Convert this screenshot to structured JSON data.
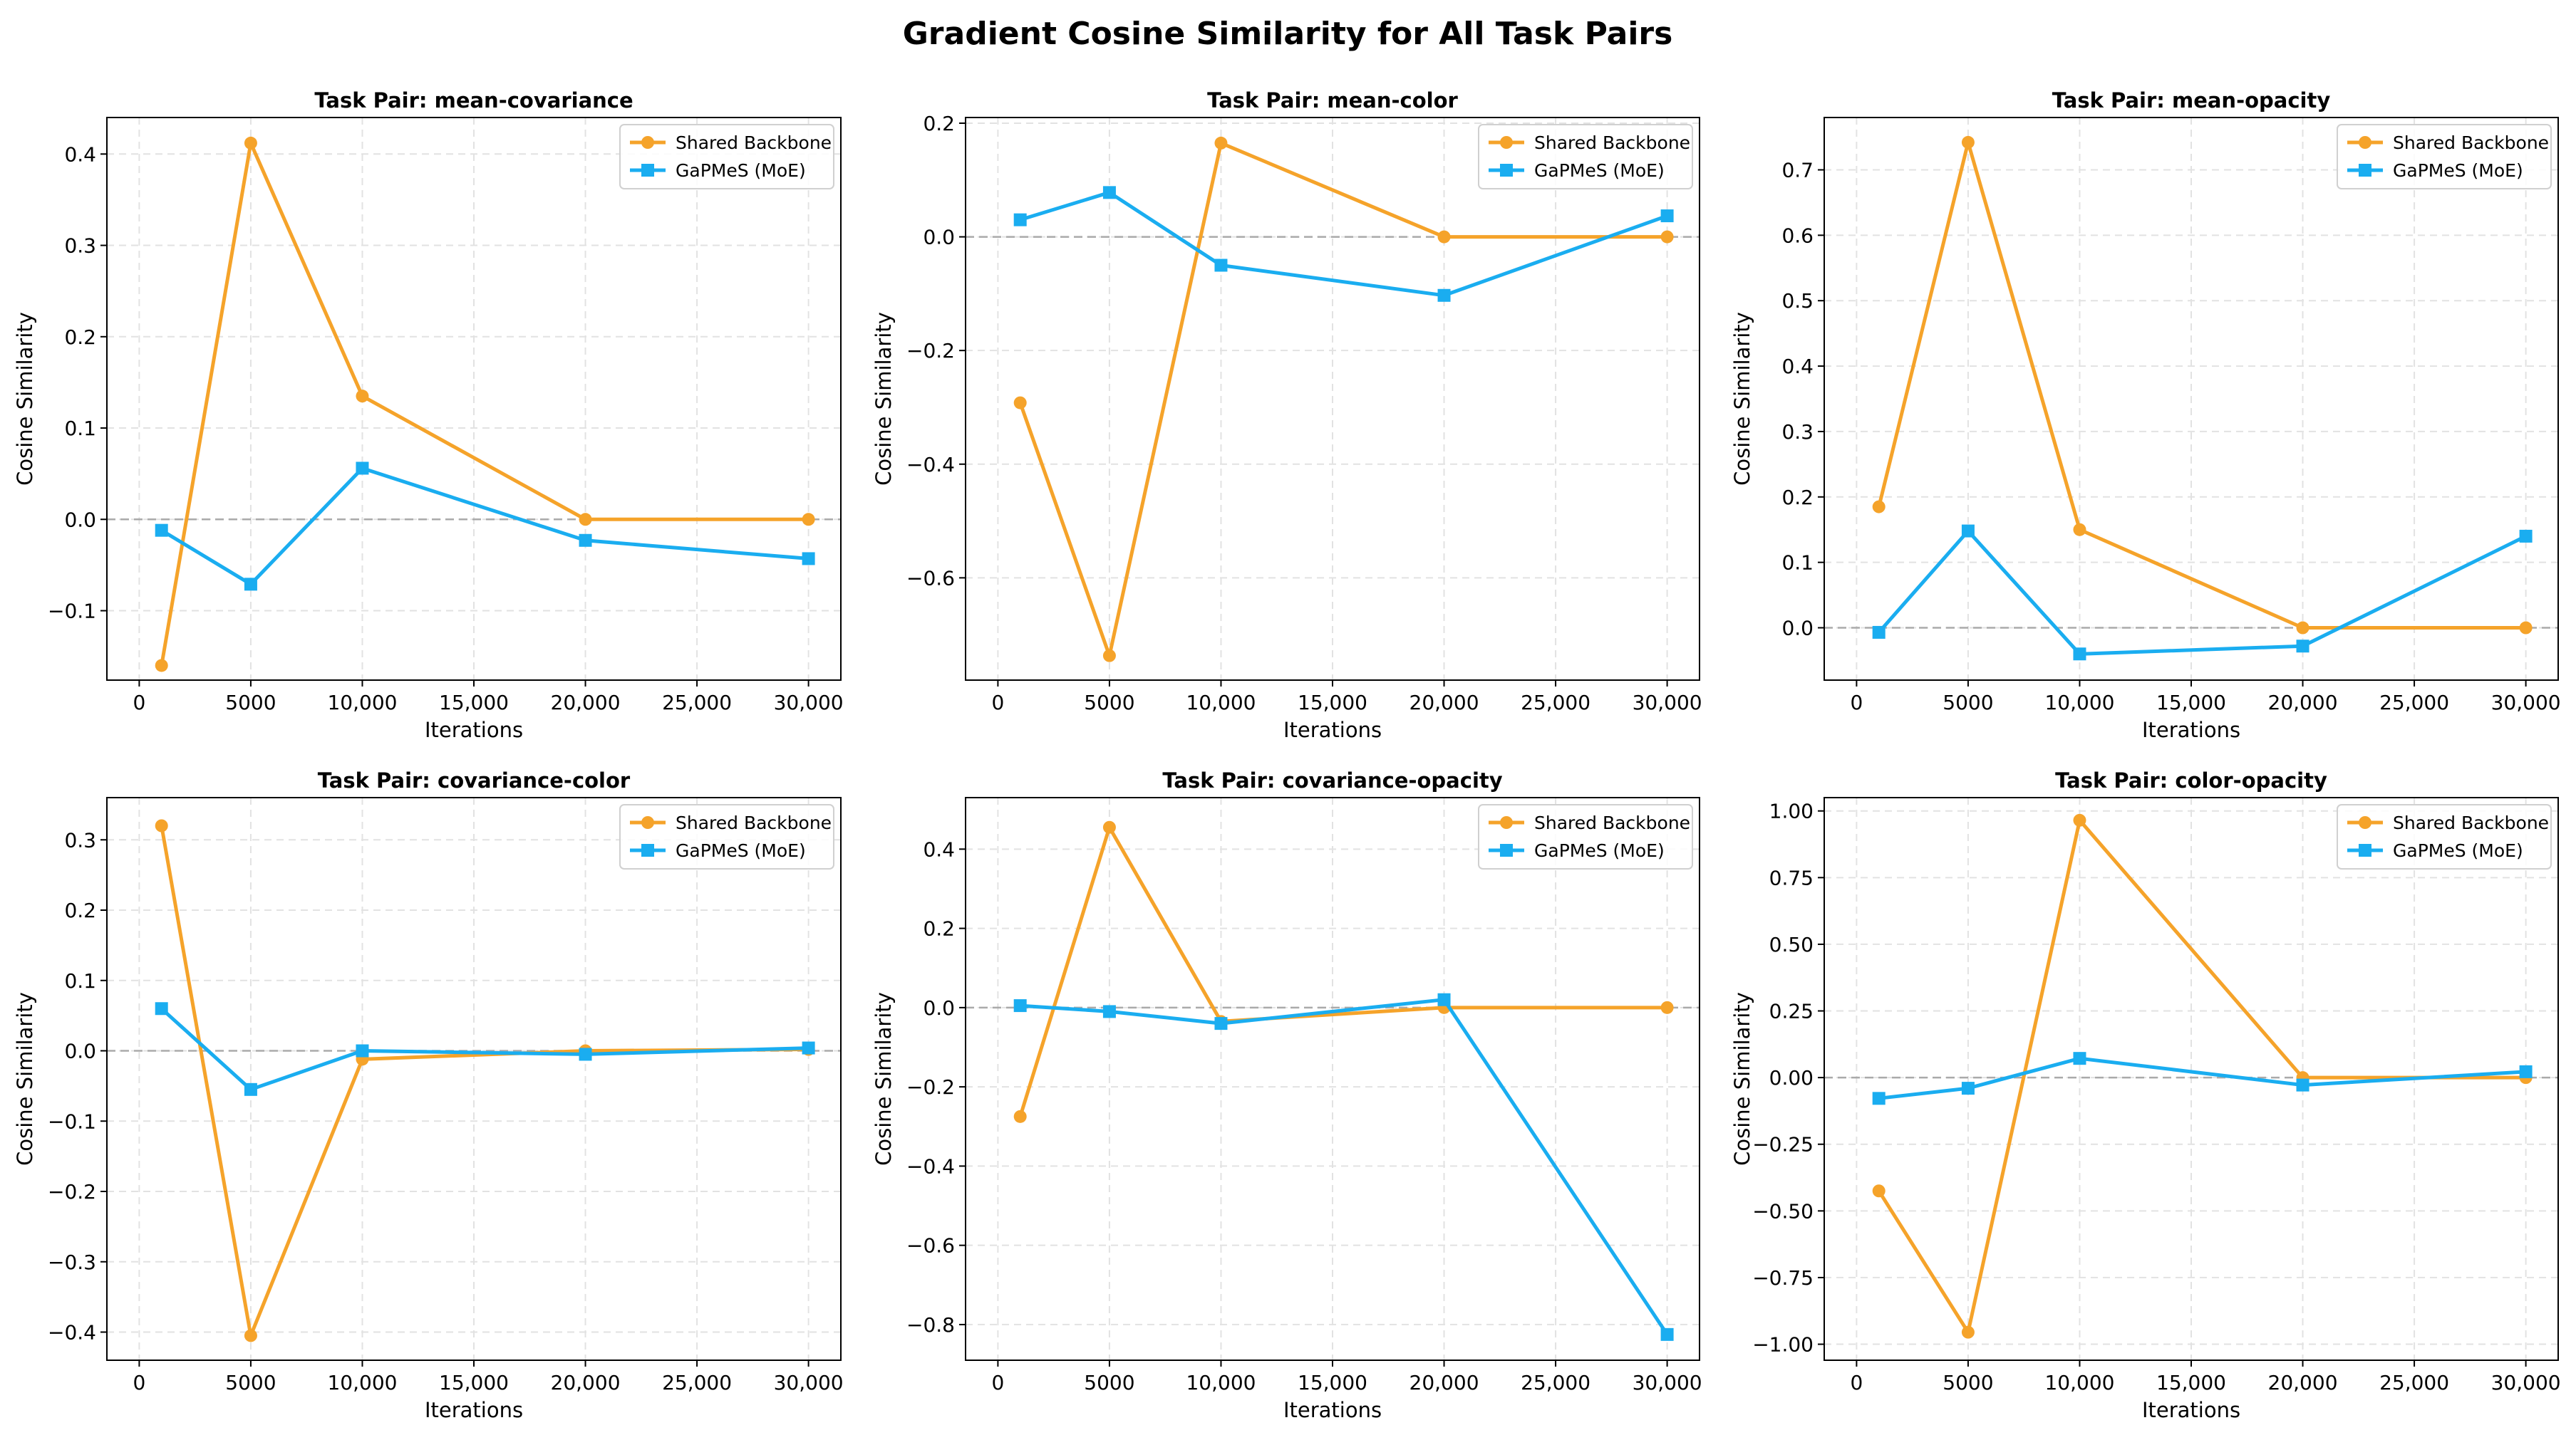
{
  "figure_title": "Gradient Cosine Similarity for All Task Pairs",
  "colors": {
    "shared": "#F5A32A",
    "moe": "#1AADF0",
    "grid": "#E2E2E2",
    "zero_line": "#AAAAAA"
  },
  "legend": {
    "shared": "Shared Backbone",
    "moe": "GaPMeS (MoE)",
    "placement": "top-right"
  },
  "chart_data": [
    {
      "type": "line",
      "title": "Task Pair: mean-covariance",
      "xlabel": "Iterations",
      "ylabel": "Cosine Similarity",
      "x": [
        1000,
        5000,
        10000,
        20000,
        30000
      ],
      "xlim": [
        -1450,
        31450
      ],
      "xticks": [
        0,
        5000,
        10000,
        15000,
        20000,
        25000,
        30000
      ],
      "xtick_labels": [
        "0",
        "5000",
        "10,000",
        "15,000",
        "20,000",
        "25,000",
        "30,000"
      ],
      "ylim": [
        -0.176,
        0.44
      ],
      "yticks": [
        -0.1,
        0.0,
        0.1,
        0.2,
        0.3,
        0.4
      ],
      "ytick_labels": [
        "−0.1",
        "0.0",
        "0.1",
        "0.2",
        "0.3",
        "0.4"
      ],
      "series": [
        {
          "name": "Shared Backbone",
          "marker": "circle",
          "values": [
            -0.16,
            0.412,
            0.135,
            0.0,
            0.0
          ]
        },
        {
          "name": "GaPMeS (MoE)",
          "marker": "square",
          "values": [
            -0.012,
            -0.071,
            0.056,
            -0.023,
            -0.043
          ]
        }
      ]
    },
    {
      "type": "line",
      "title": "Task Pair: mean-color",
      "xlabel": "Iterations",
      "ylabel": "Cosine Similarity",
      "x": [
        1000,
        5000,
        10000,
        20000,
        30000
      ],
      "xlim": [
        -1450,
        31450
      ],
      "xticks": [
        0,
        5000,
        10000,
        15000,
        20000,
        25000,
        30000
      ],
      "xtick_labels": [
        "0",
        "5000",
        "10,000",
        "15,000",
        "20,000",
        "25,000",
        "30,000"
      ],
      "ylim": [
        -0.78,
        0.21
      ],
      "yticks": [
        -0.6,
        -0.4,
        -0.2,
        0.0,
        0.2
      ],
      "ytick_labels": [
        "−0.6",
        "−0.4",
        "−0.2",
        "0.0",
        "0.2"
      ],
      "series": [
        {
          "name": "Shared Backbone",
          "marker": "circle",
          "values": [
            -0.292,
            -0.737,
            0.165,
            0.0,
            0.0
          ]
        },
        {
          "name": "GaPMeS (MoE)",
          "marker": "square",
          "values": [
            0.03,
            0.078,
            -0.05,
            -0.103,
            0.037
          ]
        }
      ]
    },
    {
      "type": "line",
      "title": "Task Pair: mean-opacity",
      "xlabel": "Iterations",
      "ylabel": "Cosine Similarity",
      "x": [
        1000,
        5000,
        10000,
        20000,
        30000
      ],
      "xlim": [
        -1450,
        31450
      ],
      "xticks": [
        0,
        5000,
        10000,
        15000,
        20000,
        25000,
        30000
      ],
      "xtick_labels": [
        "0",
        "5000",
        "10,000",
        "15,000",
        "20,000",
        "25,000",
        "30,000"
      ],
      "ylim": [
        -0.08,
        0.78
      ],
      "yticks": [
        0.0,
        0.1,
        0.2,
        0.3,
        0.4,
        0.5,
        0.6,
        0.7
      ],
      "ytick_labels": [
        "0.0",
        "0.1",
        "0.2",
        "0.3",
        "0.4",
        "0.5",
        "0.6",
        "0.7"
      ],
      "series": [
        {
          "name": "Shared Backbone",
          "marker": "circle",
          "values": [
            0.185,
            0.742,
            0.15,
            0.0,
            0.0
          ]
        },
        {
          "name": "GaPMeS (MoE)",
          "marker": "square",
          "values": [
            -0.007,
            0.148,
            -0.04,
            -0.028,
            0.14
          ]
        }
      ]
    },
    {
      "type": "line",
      "title": "Task Pair: covariance-color",
      "xlabel": "Iterations",
      "ylabel": "Cosine Similarity",
      "x": [
        1000,
        5000,
        10000,
        20000,
        30000
      ],
      "xlim": [
        -1450,
        31450
      ],
      "xticks": [
        0,
        5000,
        10000,
        15000,
        20000,
        25000,
        30000
      ],
      "xtick_labels": [
        "0",
        "5000",
        "10,000",
        "15,000",
        "20,000",
        "25,000",
        "30,000"
      ],
      "ylim": [
        -0.44,
        0.36
      ],
      "yticks": [
        -0.4,
        -0.3,
        -0.2,
        -0.1,
        0.0,
        0.1,
        0.2,
        0.3
      ],
      "ytick_labels": [
        "−0.4",
        "−0.3",
        "−0.2",
        "−0.1",
        "0.0",
        "0.1",
        "0.2",
        "0.3"
      ],
      "series": [
        {
          "name": "Shared Backbone",
          "marker": "circle",
          "values": [
            0.32,
            -0.405,
            -0.012,
            0.0,
            0.002
          ]
        },
        {
          "name": "GaPMeS (MoE)",
          "marker": "square",
          "values": [
            0.06,
            -0.055,
            0.0,
            -0.005,
            0.004
          ]
        }
      ]
    },
    {
      "type": "line",
      "title": "Task Pair: covariance-opacity",
      "xlabel": "Iterations",
      "ylabel": "Cosine Similarity",
      "x": [
        1000,
        5000,
        10000,
        20000,
        30000
      ],
      "xlim": [
        -1450,
        31450
      ],
      "xticks": [
        0,
        5000,
        10000,
        15000,
        20000,
        25000,
        30000
      ],
      "xtick_labels": [
        "0",
        "5000",
        "10,000",
        "15,000",
        "20,000",
        "25,000",
        "30,000"
      ],
      "ylim": [
        -0.89,
        0.53
      ],
      "yticks": [
        -0.8,
        -0.6,
        -0.4,
        -0.2,
        0.0,
        0.2,
        0.4
      ],
      "ytick_labels": [
        "−0.8",
        "−0.6",
        "−0.4",
        "−0.2",
        "0.0",
        "0.2",
        "0.4"
      ],
      "series": [
        {
          "name": "Shared Backbone",
          "marker": "circle",
          "values": [
            -0.275,
            0.455,
            -0.035,
            0.0,
            0.0
          ]
        },
        {
          "name": "GaPMeS (MoE)",
          "marker": "square",
          "values": [
            0.005,
            -0.01,
            -0.04,
            0.02,
            -0.825
          ]
        }
      ]
    },
    {
      "type": "line",
      "title": "Task Pair: color-opacity",
      "xlabel": "Iterations",
      "ylabel": "Cosine Similarity",
      "x": [
        1000,
        5000,
        10000,
        20000,
        30000
      ],
      "xlim": [
        -1450,
        31450
      ],
      "xticks": [
        0,
        5000,
        10000,
        15000,
        20000,
        25000,
        30000
      ],
      "xtick_labels": [
        "0",
        "5000",
        "10,000",
        "15,000",
        "20,000",
        "25,000",
        "30,000"
      ],
      "ylim": [
        -1.06,
        1.05
      ],
      "yticks": [
        -1.0,
        -0.75,
        -0.5,
        -0.25,
        0.0,
        0.25,
        0.5,
        0.75,
        1.0
      ],
      "ytick_labels": [
        "−1.00",
        "−0.75",
        "−0.50",
        "−0.25",
        "0.00",
        "0.25",
        "0.50",
        "0.75",
        "1.00"
      ],
      "series": [
        {
          "name": "Shared Backbone",
          "marker": "circle",
          "values": [
            -0.425,
            -0.955,
            0.965,
            0.0,
            0.0
          ]
        },
        {
          "name": "GaPMeS (MoE)",
          "marker": "square",
          "values": [
            -0.078,
            -0.04,
            0.072,
            -0.028,
            0.022
          ]
        }
      ]
    }
  ]
}
